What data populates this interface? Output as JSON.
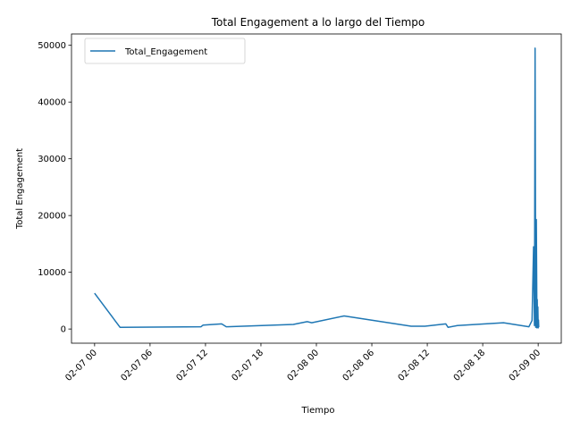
{
  "chart_data": {
    "type": "line",
    "title": "Total Engagement a lo largo del Tiempo",
    "xlabel": "Tiempo",
    "ylabel": "Total Engagement",
    "x_axis_type": "datetime",
    "x_ticks": [
      "02-07 00",
      "02-07 06",
      "02-07 12",
      "02-07 18",
      "02-08 00",
      "02-08 06",
      "02-08 12",
      "02-08 18",
      "02-09 00"
    ],
    "y_ticks": [
      "0",
      "10000",
      "20000",
      "30000",
      "40000",
      "50000"
    ],
    "ylim": [
      -2500,
      52000
    ],
    "xlim": [
      "2025-02-06T21:30",
      "2025-02-09T02:30"
    ],
    "grid": false,
    "legend_position": "upper left",
    "color": "#1f77b4",
    "series": [
      {
        "name": "Total_Engagement",
        "points": [
          {
            "x": "2025-02-07T00:00",
            "y": 6300
          },
          {
            "x": "2025-02-07T02:45",
            "y": 300
          },
          {
            "x": "2025-02-07T11:30",
            "y": 400
          },
          {
            "x": "2025-02-07T11:45",
            "y": 700
          },
          {
            "x": "2025-02-07T13:45",
            "y": 900
          },
          {
            "x": "2025-02-07T14:15",
            "y": 400
          },
          {
            "x": "2025-02-07T21:30",
            "y": 800
          },
          {
            "x": "2025-02-07T23:00",
            "y": 1300
          },
          {
            "x": "2025-02-07T23:30",
            "y": 1100
          },
          {
            "x": "2025-02-08T03:00",
            "y": 2300
          },
          {
            "x": "2025-02-08T10:15",
            "y": 500
          },
          {
            "x": "2025-02-08T11:45",
            "y": 500
          },
          {
            "x": "2025-02-08T14:00",
            "y": 900
          },
          {
            "x": "2025-02-08T14:15",
            "y": 300
          },
          {
            "x": "2025-02-08T15:15",
            "y": 600
          },
          {
            "x": "2025-02-08T20:15",
            "y": 1100
          },
          {
            "x": "2025-02-08T23:00",
            "y": 400
          },
          {
            "x": "2025-02-08T23:20",
            "y": 1500
          },
          {
            "x": "2025-02-08T23:30",
            "y": 14500
          },
          {
            "x": "2025-02-08T23:36",
            "y": 600
          },
          {
            "x": "2025-02-08T23:40",
            "y": 49500
          },
          {
            "x": "2025-02-08T23:44",
            "y": 300
          },
          {
            "x": "2025-02-08T23:48",
            "y": 19300
          },
          {
            "x": "2025-02-08T23:52",
            "y": 200
          },
          {
            "x": "2025-02-08T23:54",
            "y": 5200
          },
          {
            "x": "2025-02-08T23:56",
            "y": 400
          },
          {
            "x": "2025-02-08T23:58",
            "y": 3900
          },
          {
            "x": "2025-02-09T00:00",
            "y": 200
          },
          {
            "x": "2025-02-09T00:02",
            "y": 1600
          },
          {
            "x": "2025-02-09T00:04",
            "y": 300
          }
        ]
      }
    ]
  }
}
